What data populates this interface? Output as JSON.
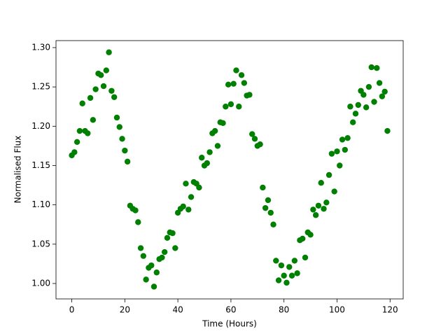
{
  "chart_data": {
    "type": "scatter",
    "xlabel": "Time (Hours)",
    "ylabel": "Normalised Flux",
    "x": [
      0,
      1,
      2,
      3,
      4,
      5,
      6,
      7,
      8,
      9,
      10,
      11,
      12,
      13,
      14,
      15,
      16,
      17,
      18,
      19,
      20,
      21,
      22,
      23,
      24,
      25,
      26,
      27,
      28,
      29,
      30,
      31,
      32,
      33,
      34,
      35,
      36,
      37,
      38,
      39,
      40,
      41,
      42,
      43,
      44,
      45,
      46,
      47,
      48,
      49,
      50,
      51,
      52,
      53,
      54,
      55,
      56,
      57,
      58,
      59,
      60,
      61,
      62,
      63,
      64,
      65,
      66,
      67,
      68,
      69,
      70,
      71,
      72,
      73,
      74,
      75,
      76,
      77,
      78,
      79,
      80,
      81,
      82,
      83,
      84,
      85,
      86,
      87,
      88,
      89,
      90,
      91,
      92,
      93,
      94,
      95,
      96,
      97,
      98,
      99,
      100,
      101,
      102,
      103,
      104,
      105,
      106,
      107,
      108,
      109,
      110,
      111,
      112,
      113,
      114,
      115,
      116,
      117,
      118,
      119
    ],
    "series": [
      {
        "color": "#008000",
        "values": [
          1.163,
          1.167,
          1.18,
          1.194,
          1.229,
          1.194,
          1.191,
          1.236,
          1.208,
          1.247,
          1.267,
          1.265,
          1.251,
          1.271,
          1.294,
          1.245,
          1.237,
          1.211,
          1.199,
          1.184,
          1.169,
          1.155,
          1.099,
          1.095,
          1.093,
          1.078,
          1.045,
          1.035,
          1.005,
          1.02,
          1.023,
          0.996,
          1.014,
          1.031,
          1.033,
          1.04,
          1.058,
          1.065,
          1.064,
          1.045,
          1.09,
          1.095,
          1.098,
          1.127,
          1.094,
          1.11,
          1.129,
          1.127,
          1.122,
          1.16,
          1.15,
          1.153,
          1.167,
          1.191,
          1.194,
          1.175,
          1.205,
          1.204,
          1.225,
          1.253,
          1.228,
          1.254,
          1.271,
          1.225,
          1.265,
          1.255,
          1.239,
          1.24,
          1.19,
          1.184,
          1.175,
          1.177,
          1.122,
          1.096,
          1.106,
          1.09,
          1.075,
          1.029,
          1.004,
          1.023,
          1.01,
          1.001,
          1.021,
          1.01,
          1.029,
          1.013,
          1.055,
          1.057,
          1.033,
          1.065,
          1.062,
          1.094,
          1.087,
          1.099,
          1.128,
          1.095,
          1.103,
          1.138,
          1.165,
          1.117,
          1.168,
          1.15,
          1.183,
          1.17,
          1.185,
          1.225,
          1.205,
          1.216,
          1.227,
          1.245,
          1.24,
          1.224,
          1.25,
          1.275,
          1.231,
          1.274,
          1.255,
          1.238,
          1.244,
          1.194
        ]
      }
    ],
    "xlim": [
      -5.95,
      124.95
    ],
    "xticks": [
      0,
      20,
      40,
      60,
      80,
      100,
      120
    ],
    "ylim": [
      0.9804,
      1.3089
    ],
    "yticks": [
      {
        "value": 1,
        "label": "1.00"
      },
      1.05,
      {
        "value": 1.1,
        "label": "1.10"
      },
      1.15,
      {
        "value": 1.2,
        "label": "1.20"
      },
      1.25,
      {
        "value": 1.3,
        "label": "1.30"
      }
    ],
    "grid": false
  }
}
